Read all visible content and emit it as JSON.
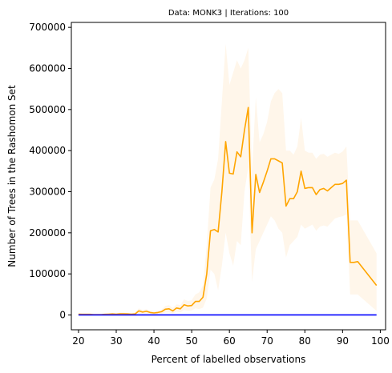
{
  "chart_data": {
    "type": "line",
    "title": "Data: MONK3 | Iterations: 100",
    "xlabel": "Percent of labelled observations",
    "ylabel": "Number of Trees in the Rashomon Set",
    "xlim": [
      18.1,
      101.4
    ],
    "ylim": [
      -36000,
      712000
    ],
    "xticks": [
      20,
      30,
      40,
      50,
      60,
      70,
      80,
      90,
      100
    ],
    "yticks": [
      0,
      100000,
      200000,
      300000,
      400000,
      500000,
      600000,
      700000
    ],
    "grid": false,
    "series": [
      {
        "color": "#ffa500",
        "band_color": "#fff5e6",
        "x": [
          20,
          21,
          22,
          23,
          24,
          25,
          26,
          27,
          28,
          29,
          30,
          31,
          32,
          33,
          34,
          35,
          36,
          37,
          38,
          39,
          40,
          41,
          42,
          43,
          44,
          45,
          46,
          47,
          48,
          49,
          50,
          51,
          52,
          53,
          54,
          55,
          56,
          57,
          58,
          59,
          60,
          61,
          62,
          63,
          64,
          65,
          66,
          67,
          68,
          69,
          70,
          71,
          72,
          73,
          74,
          75,
          76,
          77,
          78,
          79,
          80,
          81,
          82,
          83,
          84,
          85,
          86,
          87,
          88,
          89,
          90,
          91,
          92,
          93,
          94,
          99
        ],
        "y": [
          2000,
          1500,
          1500,
          1500,
          1000,
          1000,
          1000,
          1500,
          2000,
          2500,
          2000,
          3000,
          3000,
          2500,
          2000,
          2500,
          10000,
          7000,
          9000,
          6000,
          5000,
          6000,
          8000,
          14000,
          15000,
          10000,
          17000,
          15000,
          25000,
          22000,
          23000,
          33000,
          33000,
          43000,
          100000,
          205000,
          208000,
          202000,
          300000,
          422000,
          345000,
          343000,
          397000,
          385000,
          450000,
          505000,
          200000,
          342000,
          298000,
          323000,
          350000,
          380000,
          380000,
          375000,
          370000,
          265000,
          283000,
          283000,
          300000,
          350000,
          308000,
          310000,
          310000,
          293000,
          305000,
          308000,
          302000,
          310000,
          318000,
          318000,
          320000,
          328000,
          128000,
          128000,
          130000,
          72000
        ],
        "upper": [
          4000,
          3500,
          3500,
          3500,
          3000,
          3000,
          3000,
          3500,
          4500,
          5000,
          4500,
          6000,
          6000,
          5000,
          4500,
          5000,
          16000,
          12000,
          14000,
          10000,
          9000,
          10000,
          13000,
          22000,
          24000,
          17000,
          26000,
          24000,
          38000,
          34000,
          36000,
          50000,
          55000,
          72000,
          170000,
          310000,
          330000,
          380000,
          520000,
          660000,
          560000,
          590000,
          620000,
          600000,
          620000,
          650000,
          350000,
          530000,
          420000,
          440000,
          470000,
          520000,
          540000,
          550000,
          540000,
          400000,
          400000,
          390000,
          410000,
          480000,
          400000,
          395000,
          395000,
          380000,
          390000,
          392000,
          385000,
          390000,
          395000,
          392000,
          398000,
          410000,
          230000,
          230000,
          230000,
          150000
        ],
        "lower": [
          500,
          300,
          300,
          300,
          200,
          200,
          200,
          300,
          400,
          500,
          400,
          800,
          800,
          600,
          500,
          600,
          4000,
          2500,
          3500,
          2000,
          1500,
          2000,
          3000,
          6000,
          6500,
          4000,
          8000,
          6500,
          12000,
          10000,
          11000,
          16000,
          14000,
          18000,
          40000,
          110000,
          100000,
          60000,
          120000,
          200000,
          150000,
          120000,
          180000,
          170000,
          300000,
          360000,
          80000,
          160000,
          180000,
          200000,
          220000,
          240000,
          230000,
          210000,
          200000,
          140000,
          170000,
          180000,
          190000,
          220000,
          210000,
          215000,
          220000,
          205000,
          215000,
          218000,
          215000,
          225000,
          235000,
          238000,
          240000,
          245000,
          50000,
          50000,
          50000,
          10000
        ]
      },
      {
        "color": "#0000ff",
        "x": [
          20,
          99
        ],
        "y": [
          200,
          200
        ]
      }
    ]
  }
}
